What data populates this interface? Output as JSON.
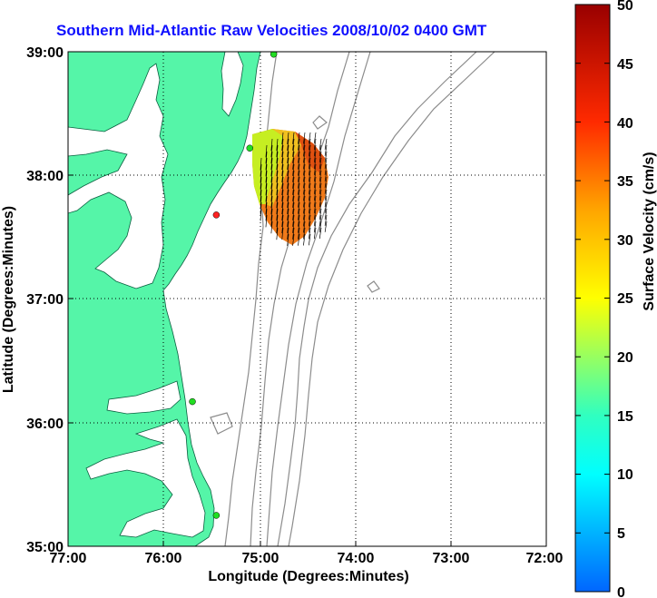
{
  "title": "Southern Mid-Atlantic Raw Velocities 2008/10/02 0400 GMT",
  "x_axis": {
    "label": "Longitude (Degrees:Minutes)",
    "ticks": [
      "77:00",
      "76:00",
      "75:00",
      "74:00",
      "73:00",
      "72:00"
    ]
  },
  "y_axis": {
    "label": "Latitude (Degrees:Minutes)",
    "ticks": [
      "39:00",
      "38:00",
      "37:00",
      "36:00",
      "35:00"
    ]
  },
  "colorbar": {
    "label": "Surface Velocity (cm/s)",
    "ticks": [
      "50",
      "45",
      "40",
      "35",
      "30",
      "25",
      "20",
      "15",
      "10",
      "5",
      "0"
    ],
    "min": 0,
    "max": 50
  },
  "colors": {
    "land": "#55f5a8",
    "title": "#1010ff",
    "bathymetry": "#8c8c8c",
    "station_green": "#22dd22",
    "station_red": "#ff2222"
  },
  "map_data": {
    "lon_range": [
      -77,
      -72
    ],
    "lat_range": [
      35,
      39
    ],
    "stations": [
      {
        "lon": -74.85,
        "lat": 38.98,
        "status": "green"
      },
      {
        "lon": -75.1,
        "lat": 38.22,
        "status": "green"
      },
      {
        "lon": -75.45,
        "lat": 37.68,
        "status": "red"
      },
      {
        "lon": -75.7,
        "lat": 36.17,
        "status": "green"
      },
      {
        "lon": -75.45,
        "lat": 35.25,
        "status": "green"
      }
    ]
  }
}
